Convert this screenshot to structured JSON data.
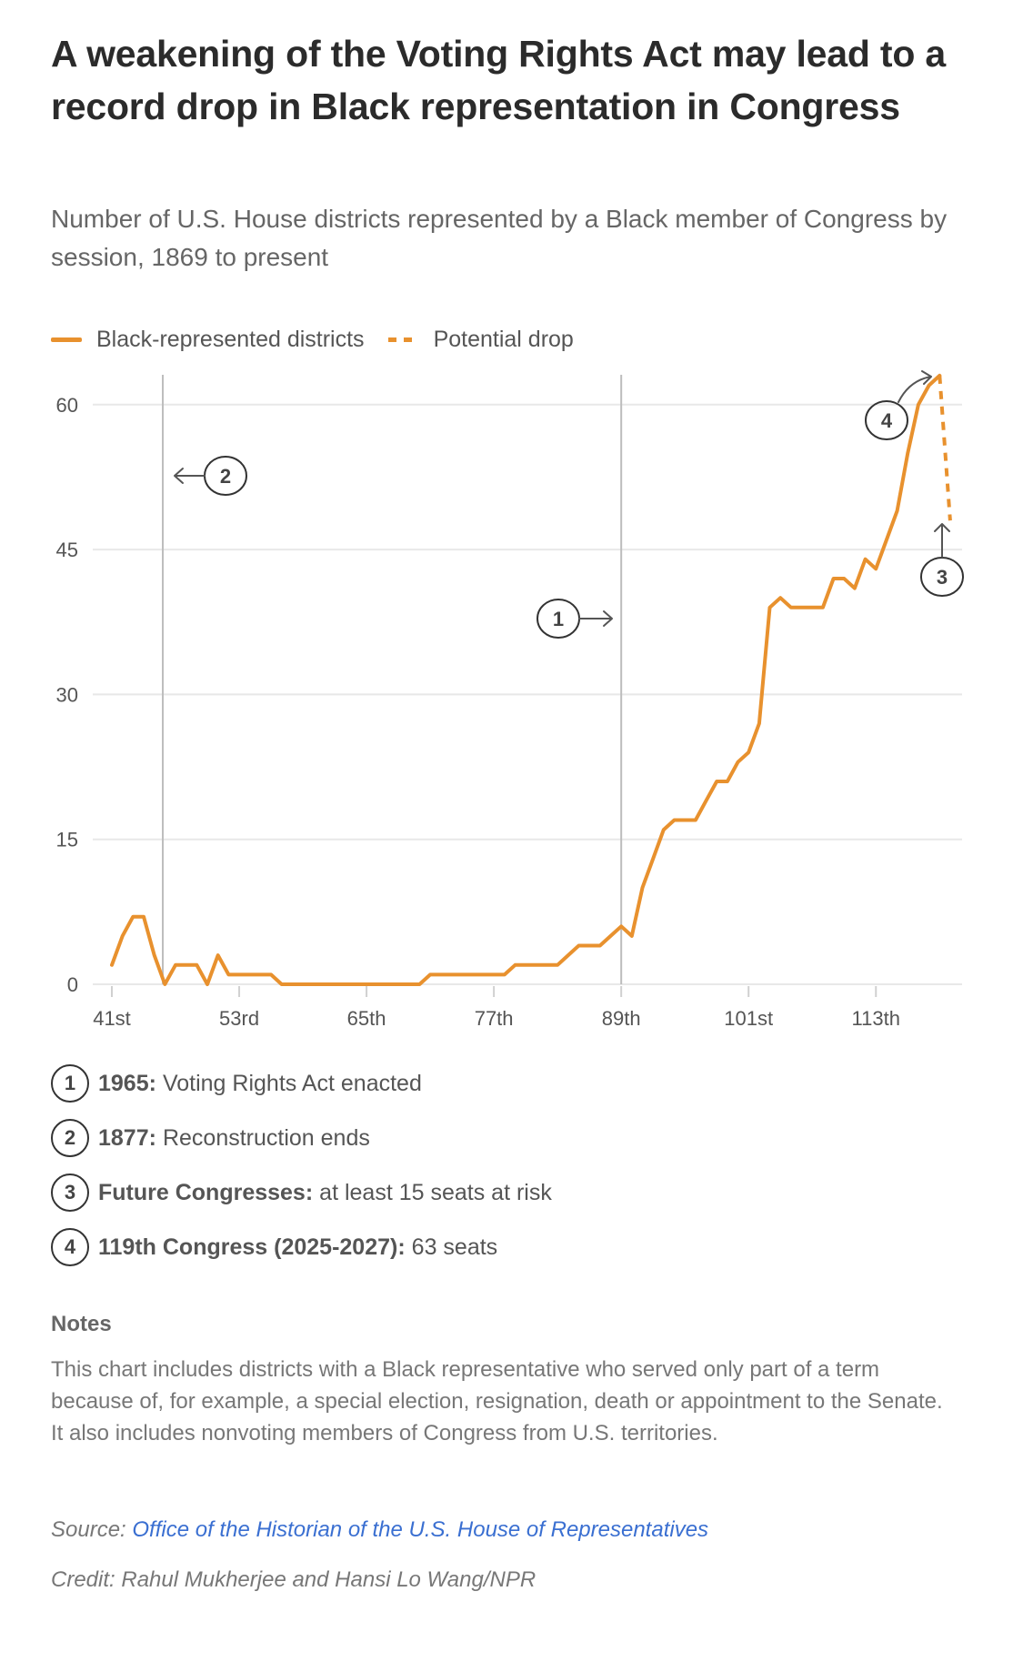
{
  "header": {
    "title": "A weakening of the Voting Rights Act may lead to a record drop in Black representation in Congress",
    "subtitle": "Number of U.S. House districts represented by a Black member of Congress by session, 1869 to present"
  },
  "legend": {
    "items": [
      {
        "label": "Black-represented districts",
        "style": "solid"
      },
      {
        "label": "Potential drop",
        "style": "dashed"
      }
    ]
  },
  "colors": {
    "series": "#e8912e",
    "gridline": "#e8e8e8",
    "event_line": "#bdbdbd",
    "annotation": "#333333",
    "link": "#3a6fd1"
  },
  "chart_data": {
    "type": "line",
    "title": "A weakening of the Voting Rights Act may lead to a record drop in Black representation in Congress",
    "subtitle": "Number of U.S. House districts represented by a Black member of Congress by session, 1869 to present",
    "xlabel": "",
    "ylabel": "",
    "ylim": [
      0,
      63
    ],
    "yticks": [
      0,
      15,
      30,
      45,
      60
    ],
    "xticks": [
      {
        "congress": 41,
        "label": "41st"
      },
      {
        "congress": 53,
        "label": "53rd"
      },
      {
        "congress": 65,
        "label": "65th"
      },
      {
        "congress": 77,
        "label": "77th"
      },
      {
        "congress": 89,
        "label": "89th"
      },
      {
        "congress": 101,
        "label": "101st"
      },
      {
        "congress": 113,
        "label": "113th"
      }
    ],
    "xlim": [
      41,
      121
    ],
    "grid": true,
    "legend_position": "top-left",
    "series": [
      {
        "name": "Black-represented districts",
        "style": "solid",
        "x": [
          41,
          42,
          43,
          44,
          45,
          46,
          47,
          48,
          49,
          50,
          51,
          52,
          53,
          54,
          55,
          56,
          57,
          58,
          59,
          60,
          61,
          62,
          63,
          64,
          65,
          66,
          67,
          68,
          69,
          70,
          71,
          72,
          73,
          74,
          75,
          76,
          77,
          78,
          79,
          80,
          81,
          82,
          83,
          84,
          85,
          86,
          87,
          88,
          89,
          90,
          91,
          92,
          93,
          94,
          95,
          96,
          97,
          98,
          99,
          100,
          101,
          102,
          103,
          104,
          105,
          106,
          107,
          108,
          109,
          110,
          111,
          112,
          113,
          114,
          115,
          116,
          117,
          118,
          119
        ],
        "values": [
          2,
          5,
          7,
          7,
          3,
          0,
          2,
          2,
          2,
          0,
          3,
          1,
          1,
          1,
          1,
          1,
          0,
          0,
          0,
          0,
          0,
          0,
          0,
          0,
          0,
          0,
          0,
          0,
          0,
          0,
          1,
          1,
          1,
          1,
          1,
          1,
          1,
          1,
          2,
          2,
          2,
          2,
          2,
          3,
          4,
          4,
          4,
          5,
          6,
          5,
          10,
          13,
          16,
          17,
          17,
          17,
          19,
          21,
          21,
          23,
          24,
          27,
          39,
          40,
          39,
          39,
          39,
          39,
          42,
          42,
          41,
          44,
          43,
          46,
          49,
          55,
          60,
          62,
          63
        ]
      },
      {
        "name": "Potential drop",
        "style": "dashed",
        "x": [
          119,
          120
        ],
        "values": [
          63,
          48
        ]
      }
    ],
    "event_lines": [
      {
        "congress": 45.8,
        "marker": "2",
        "arrow": "left"
      },
      {
        "congress": 89,
        "marker": "1",
        "arrow": "right"
      }
    ],
    "annotations": [
      {
        "marker": "1",
        "bold": "1965:",
        "text": "Voting Rights Act enacted"
      },
      {
        "marker": "2",
        "bold": "1877:",
        "text": "Reconstruction ends"
      },
      {
        "marker": "3",
        "bold": "Future Congresses:",
        "text": "at least 15 seats at risk"
      },
      {
        "marker": "4",
        "bold": "119th Congress (2025-2027):",
        "text": "63 seats"
      }
    ]
  },
  "notes": {
    "heading": "Notes",
    "body": "This chart includes districts with a Black representative who served only part of a term because of, for example, a special election, resignation, death or appointment to the Senate. It also includes nonvoting members of Congress from U.S. territories."
  },
  "source": {
    "label": "Source:",
    "link_text": "Office of the Historian of the U.S. House of Representatives"
  },
  "credit": "Credit: Rahul Mukherjee and Hansi Lo Wang/NPR"
}
